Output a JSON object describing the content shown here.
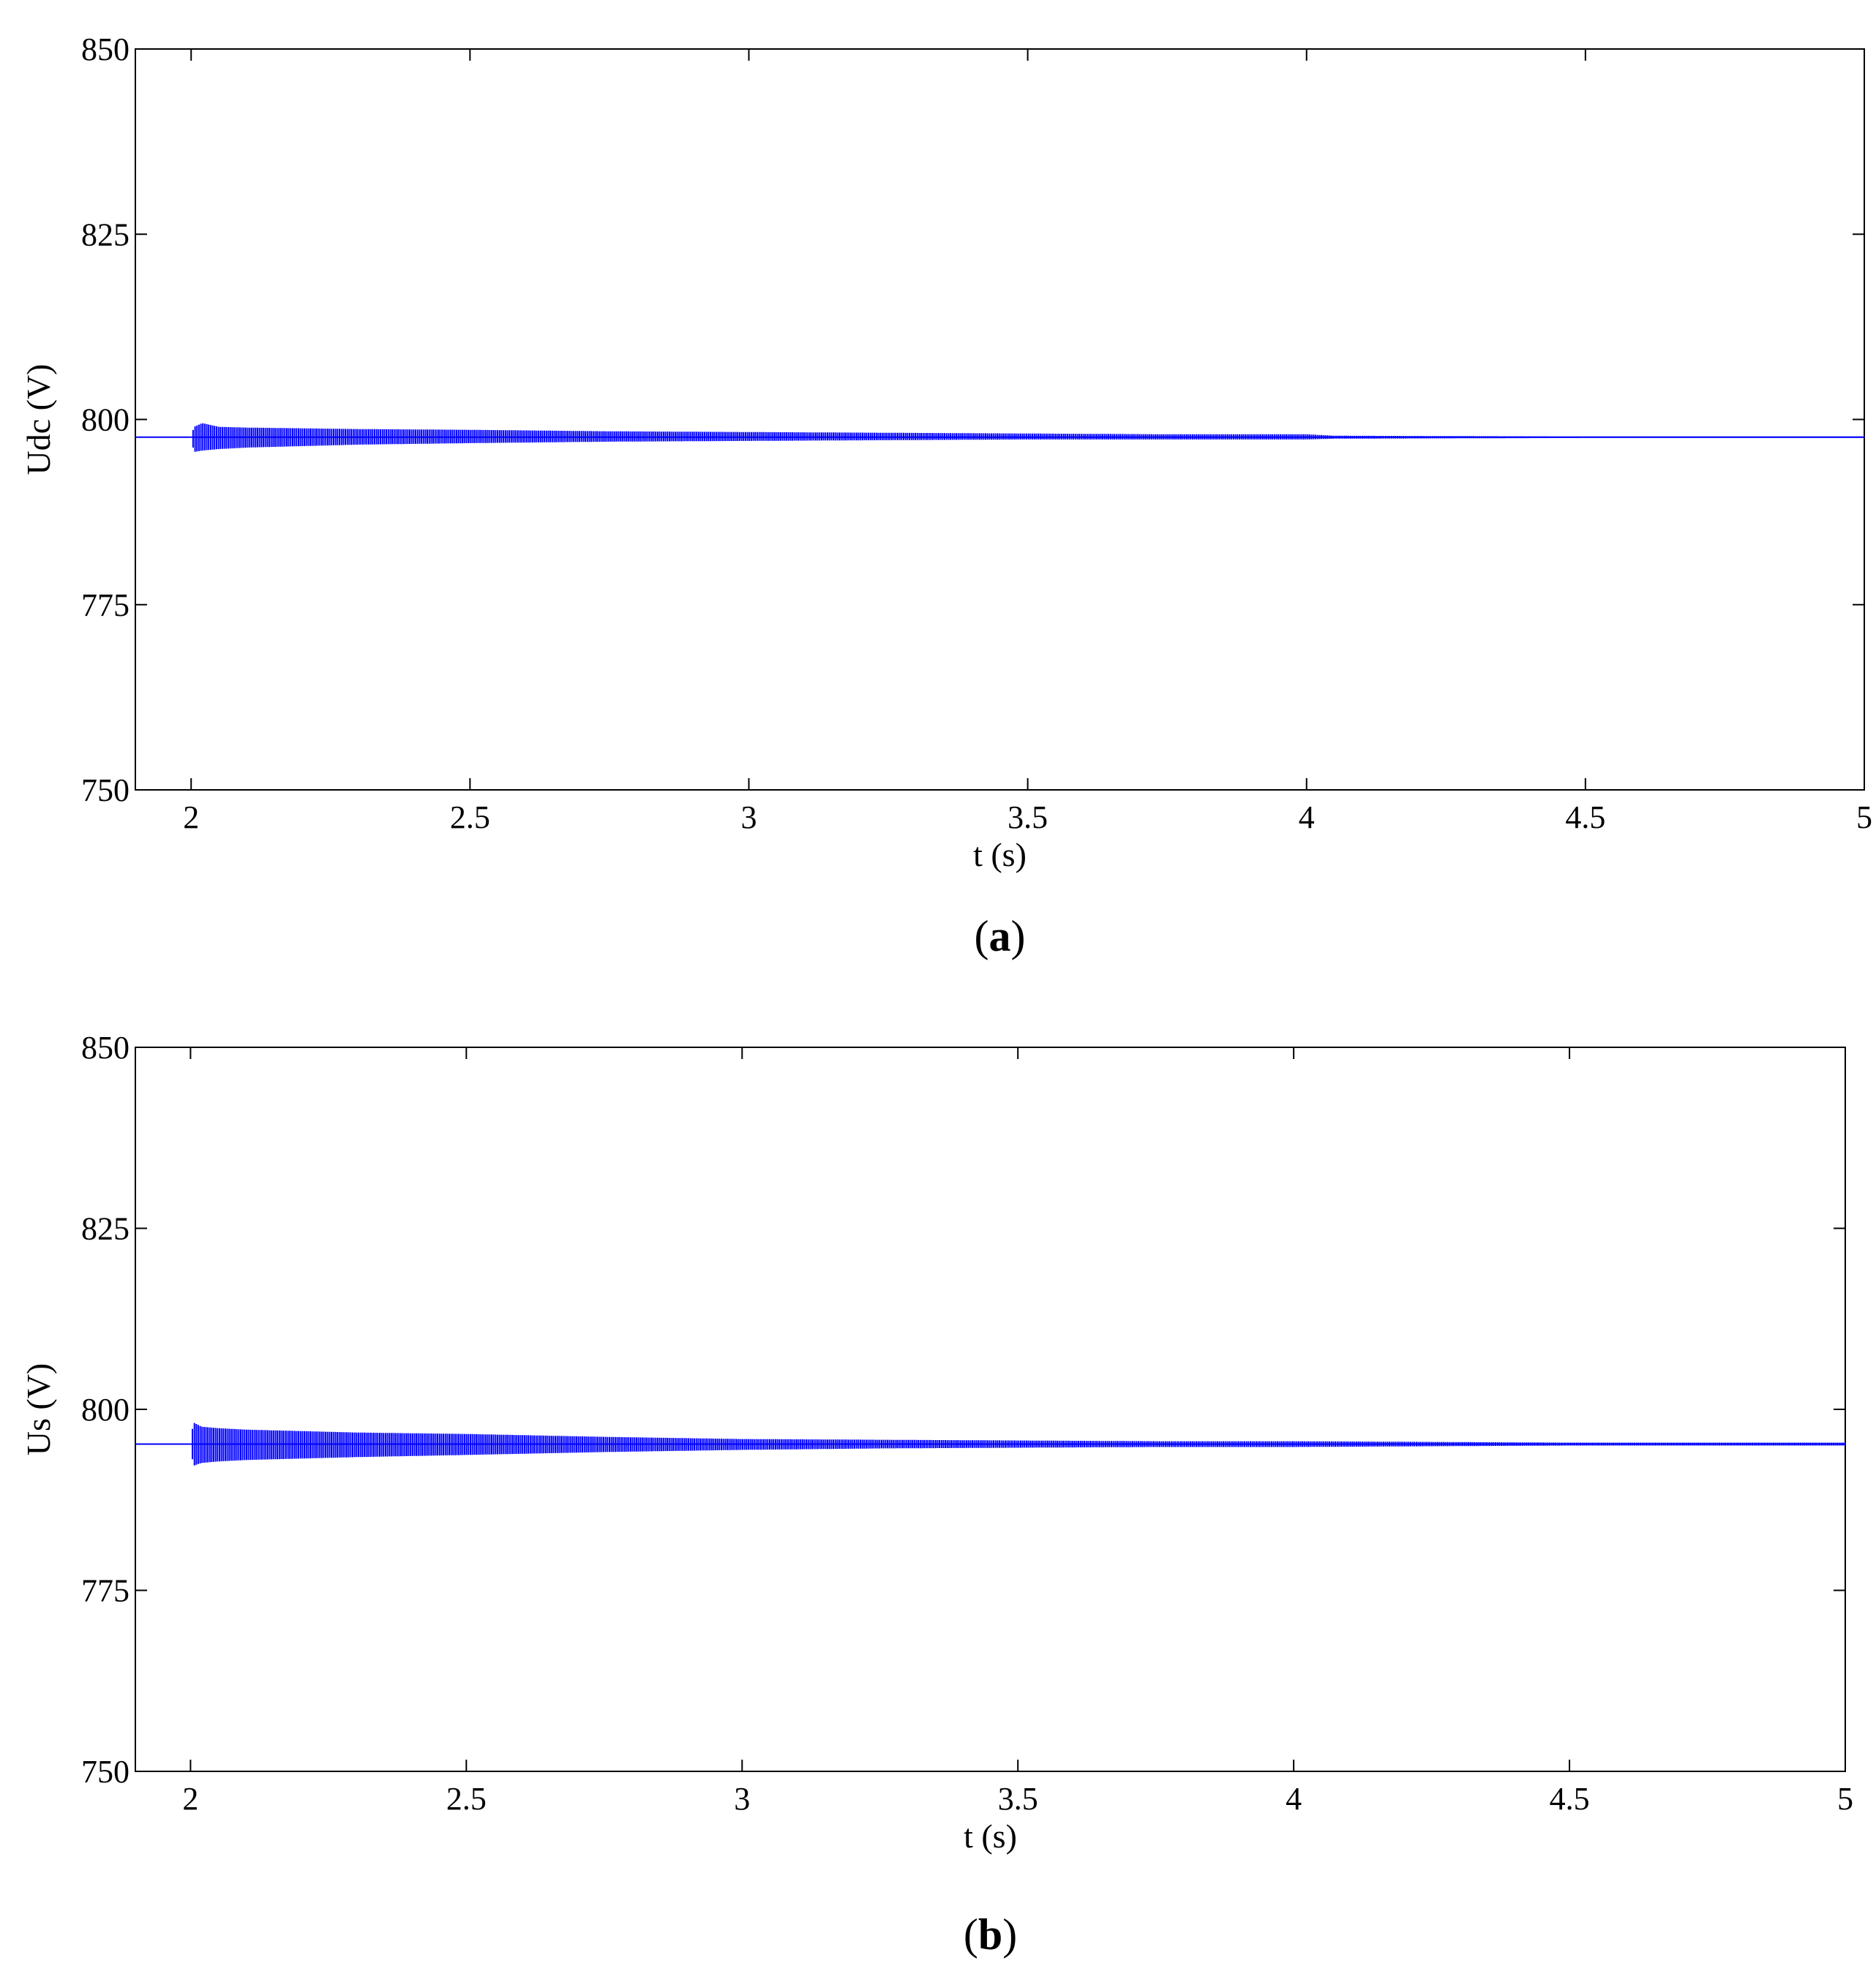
{
  "chart_data": [
    {
      "type": "line",
      "panel_label": "a",
      "xlabel": "t (s)",
      "ylabel": "Udc (V)",
      "xlim": [
        1.9,
        5
      ],
      "ylim": [
        750,
        850
      ],
      "xticks": [
        2,
        2.5,
        3,
        3.5,
        4,
        4.5,
        5
      ],
      "xtick_labels": [
        "2",
        "2.5",
        "3",
        "3.5",
        "4",
        "4.5",
        "5"
      ],
      "yticks": [
        750,
        775,
        800,
        825,
        850
      ],
      "ytick_labels": [
        "750",
        "775",
        "800",
        "825",
        "850"
      ],
      "grid": false,
      "series": [
        {
          "color": "#0000ff",
          "baseline": 797.6,
          "x": [
            1.9,
            2.0,
            2.005,
            2.02,
            2.05,
            2.1,
            2.2,
            2.3,
            2.5,
            2.75,
            3.0,
            3.25,
            3.5,
            3.75,
            4.0,
            4.05,
            4.5,
            5.0
          ],
          "y_max": [
            797.6,
            797.6,
            799.0,
            799.5,
            799.0,
            798.9,
            798.8,
            798.7,
            798.6,
            798.4,
            798.3,
            798.2,
            798.1,
            798.0,
            798.0,
            797.8,
            797.7,
            797.7
          ],
          "y_min": [
            797.6,
            797.6,
            795.6,
            795.8,
            796.0,
            796.2,
            796.4,
            796.6,
            796.8,
            797.0,
            797.1,
            797.2,
            797.3,
            797.3,
            797.3,
            797.4,
            797.5,
            797.5
          ]
        }
      ]
    },
    {
      "type": "line",
      "panel_label": "b",
      "xlabel": "t (s)",
      "ylabel": "Us (V)",
      "xlim": [
        1.9,
        5
      ],
      "ylim": [
        750,
        850
      ],
      "xticks": [
        2,
        2.5,
        3,
        3.5,
        4,
        4.5,
        5
      ],
      "xtick_labels": [
        "2",
        "2.5",
        "3",
        "3.5",
        "4",
        "4.5",
        "5"
      ],
      "yticks": [
        750,
        775,
        800,
        825,
        850
      ],
      "ytick_labels": [
        "750",
        "775",
        "800",
        "825",
        "850"
      ],
      "grid": false,
      "series": [
        {
          "color": "#0000ff",
          "baseline": 795.2,
          "x": [
            1.9,
            2.0,
            2.005,
            2.02,
            2.05,
            2.1,
            2.2,
            2.3,
            2.5,
            2.75,
            3.0,
            3.25,
            3.5,
            3.75,
            4.0,
            4.25,
            4.5,
            5.0
          ],
          "y_max": [
            795.2,
            795.2,
            798.2,
            797.6,
            797.4,
            797.2,
            797.0,
            796.8,
            796.6,
            796.2,
            795.9,
            795.8,
            795.7,
            795.6,
            795.6,
            795.5,
            795.4,
            795.4
          ],
          "y_min": [
            795.2,
            795.2,
            792.2,
            792.6,
            792.8,
            793.0,
            793.2,
            793.4,
            793.7,
            794.1,
            794.4,
            794.6,
            794.7,
            794.8,
            794.8,
            794.9,
            795.0,
            795.0
          ]
        }
      ]
    }
  ]
}
